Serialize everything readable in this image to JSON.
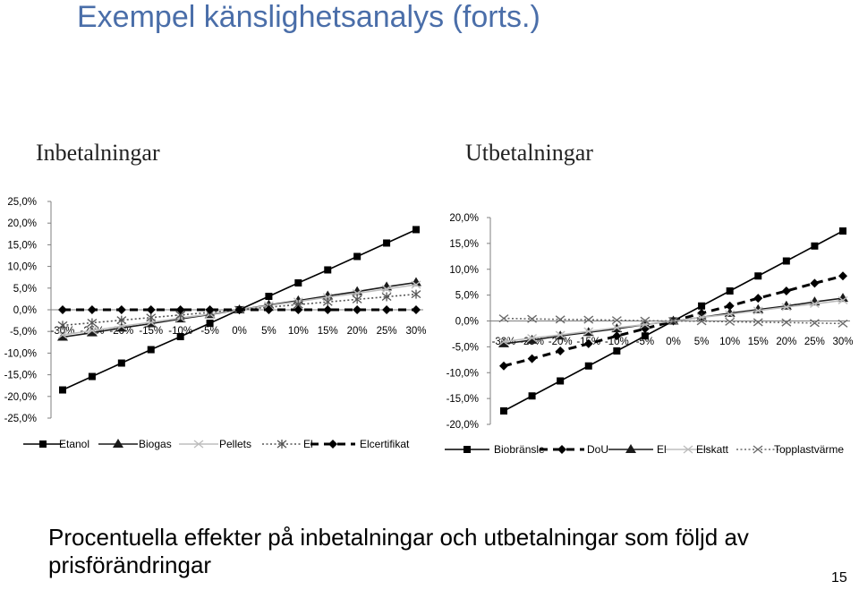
{
  "slide": {
    "title": "Exempel känslighetsanalys (forts.)",
    "footer": "Procentuella effekter på inbetalningar och utbetalningar som följd av prisförändringar",
    "page_number": "15"
  },
  "chart_data": [
    {
      "type": "line",
      "title": "Inbetalningar",
      "xlabel": "",
      "ylabel": "",
      "x": [
        "-30%",
        "-25%",
        "-20%",
        "-15%",
        "-10%",
        "-5%",
        "0%",
        "5%",
        "10%",
        "15%",
        "20%",
        "25%",
        "30%"
      ],
      "y_ticks": [
        "25,0%",
        "20,0%",
        "15,0%",
        "10,0%",
        "5,0%",
        "0,0%",
        "-5,0%",
        "-10,0%",
        "-15,0%",
        "-20,0%",
        "-25,0%"
      ],
      "ylim": [
        -25,
        25
      ],
      "grid": false,
      "legend_position": "bottom",
      "series": [
        {
          "name": "Etanol",
          "style": "solid",
          "marker": "square",
          "values": [
            -18.5,
            -15.4,
            -12.3,
            -9.2,
            -6.2,
            -3.1,
            0,
            3.1,
            6.2,
            9.2,
            12.3,
            15.4,
            18.5
          ]
        },
        {
          "name": "Biogas",
          "style": "solid",
          "marker": "triangle",
          "values": [
            -6.3,
            -5.3,
            -4.2,
            -3.2,
            -2.1,
            -1.1,
            0,
            1.1,
            2.1,
            3.2,
            4.2,
            5.3,
            6.3
          ]
        },
        {
          "name": "Pellets",
          "style": "solid",
          "marker": "x",
          "values": [
            -5.8,
            -4.8,
            -3.8,
            -2.9,
            -1.9,
            -1.0,
            0,
            1.0,
            1.9,
            2.9,
            3.8,
            4.8,
            5.8
          ]
        },
        {
          "name": "El",
          "style": "dotted",
          "marker": "star",
          "values": [
            -3.6,
            -3.0,
            -2.4,
            -1.8,
            -1.2,
            -0.6,
            0,
            0.6,
            1.2,
            1.8,
            2.4,
            3.0,
            3.6
          ]
        },
        {
          "name": "Elcertifikat",
          "style": "dashed",
          "marker": "diamond",
          "values": [
            0,
            0,
            0,
            0,
            0,
            0,
            0,
            0,
            0,
            0,
            0,
            0,
            0
          ]
        }
      ]
    },
    {
      "type": "line",
      "title": "Utbetalningar",
      "xlabel": "",
      "ylabel": "",
      "x": [
        "-30%",
        "-25%",
        "-20%",
        "-15%",
        "-10%",
        "-5%",
        "0%",
        "5%",
        "10%",
        "15%",
        "20%",
        "25%",
        "30%"
      ],
      "y_ticks": [
        "20,0%",
        "15,0%",
        "10,0%",
        "5,0%",
        "0,0%",
        "-5,0%",
        "-10,0%",
        "-15,0%",
        "-20,0%"
      ],
      "ylim": [
        -20,
        20
      ],
      "grid": false,
      "legend_position": "bottom",
      "series": [
        {
          "name": "Biobränsle",
          "style": "solid",
          "marker": "square",
          "values": [
            -17.4,
            -14.5,
            -11.6,
            -8.7,
            -5.8,
            -2.9,
            0,
            2.9,
            5.8,
            8.7,
            11.6,
            14.5,
            17.4
          ]
        },
        {
          "name": "DoU",
          "style": "dashed",
          "marker": "diamond",
          "values": [
            -8.7,
            -7.3,
            -5.8,
            -4.4,
            -2.9,
            -1.5,
            0,
            1.5,
            2.9,
            4.4,
            5.8,
            7.3,
            8.7
          ]
        },
        {
          "name": "El",
          "style": "solid",
          "marker": "triangle",
          "values": [
            -4.4,
            -3.7,
            -2.9,
            -2.2,
            -1.5,
            -0.7,
            0,
            0.7,
            1.5,
            2.2,
            2.9,
            3.7,
            4.4
          ]
        },
        {
          "name": "Elskatt",
          "style": "solid",
          "marker": "x",
          "values": [
            -4.0,
            -3.3,
            -2.7,
            -2.0,
            -1.3,
            -0.7,
            0,
            0.7,
            1.3,
            2.0,
            2.7,
            3.3,
            4.0
          ]
        },
        {
          "name": "Topplastvärme",
          "style": "dotted",
          "marker": "x",
          "values": [
            0.5,
            0.4,
            0.3,
            0.25,
            0.15,
            0.05,
            0,
            -0.05,
            -0.15,
            -0.25,
            -0.3,
            -0.4,
            -0.5
          ]
        }
      ]
    }
  ]
}
